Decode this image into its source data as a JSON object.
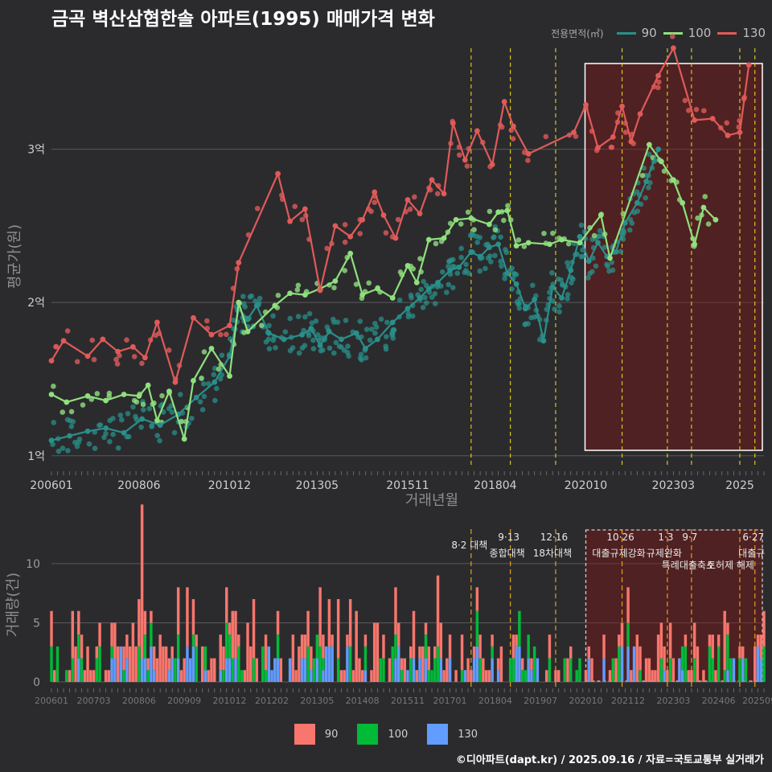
{
  "title": "금곡 벽산삼협한솔 아파트(1995) 매매가격 변화",
  "footer": "©디아파트(dapt.kr) / 2025.09.16 / 자료=국토교통부 실거래가",
  "colors": {
    "s90": "#f8766d",
    "s100": "#00ba38",
    "s130": "#619cff",
    "l90": "#2a8f8a",
    "l100": "#8fe07e",
    "l130": "#e05a5a"
  },
  "chart_data": [
    {
      "type": "line",
      "ylabel": "평균가(원)",
      "xlabel": "거래년월",
      "legend_title": "전용면적(㎡)",
      "legend_position": "top-right",
      "x_ticks": [
        "200601",
        "200806",
        "201012",
        "201305",
        "201511",
        "201804",
        "202010",
        "202303",
        "2025"
      ],
      "y_ticks": [
        "1억",
        "2억",
        "3억"
      ],
      "y_tick_values": [
        10000,
        20000,
        30000
      ],
      "ylim": [
        9200,
        36800
      ],
      "xlim": [
        "2006-01",
        "2025-09"
      ],
      "policy_dates": [
        "2017-08",
        "2018-09",
        "2019-12",
        "2021-10",
        "2023-01",
        "2023-09",
        "2025-01",
        "2025-06"
      ],
      "highlight_window": [
        "2020-10",
        "2025-09"
      ],
      "series": [
        {
          "name": "90",
          "points": [
            [
              "2006-01",
              11000
            ],
            [
              "2006-07",
              11300
            ],
            [
              "2007-01",
              11600
            ],
            [
              "2007-07",
              11800
            ],
            [
              "2008-01",
              11500
            ],
            [
              "2008-07",
              12400
            ],
            [
              "2009-01",
              12000
            ],
            [
              "2009-07",
              12700
            ],
            [
              "2010-01",
              13800
            ],
            [
              "2010-07",
              14800
            ],
            [
              "2010-12",
              16500
            ],
            [
              "2011-03",
              19600
            ],
            [
              "2011-06",
              18900
            ],
            [
              "2011-09",
              19800
            ],
            [
              "2012-01",
              18000
            ],
            [
              "2012-06",
              17600
            ],
            [
              "2012-12",
              17900
            ],
            [
              "2013-03",
              18300
            ],
            [
              "2013-06",
              17200
            ],
            [
              "2013-09",
              18100
            ],
            [
              "2014-01",
              17600
            ],
            [
              "2014-06",
              18000
            ],
            [
              "2014-09",
              17000
            ],
            [
              "2015-01",
              17600
            ],
            [
              "2015-06",
              18700
            ],
            [
              "2015-11",
              19600
            ],
            [
              "2016-03",
              20300
            ],
            [
              "2016-06",
              20900
            ],
            [
              "2016-09",
              21300
            ],
            [
              "2017-01",
              22100
            ],
            [
              "2017-04",
              22300
            ],
            [
              "2017-08",
              23300
            ],
            [
              "2017-11",
              23000
            ],
            [
              "2018-02",
              23600
            ],
            [
              "2018-05",
              23800
            ],
            [
              "2018-08",
              21900
            ],
            [
              "2018-11",
              21200
            ],
            [
              "2019-02",
              19600
            ],
            [
              "2019-05",
              20200
            ],
            [
              "2019-08",
              17500
            ],
            [
              "2019-11",
              21000
            ],
            [
              "2020-02",
              20300
            ],
            [
              "2020-05",
              22100
            ],
            [
              "2020-08",
              24300
            ],
            [
              "2020-11",
              22700
            ],
            [
              "2021-02",
              23900
            ],
            [
              "2021-05",
              23000
            ],
            [
              "2021-08",
              23300
            ],
            [
              "2021-11",
              25200
            ],
            [
              "2022-03",
              26500
            ],
            [
              "2022-06",
              27900
            ],
            [
              "2022-10",
              30000
            ]
          ]
        },
        {
          "name": "100",
          "points": [
            [
              "2006-01",
              14000
            ],
            [
              "2006-06",
              13500
            ],
            [
              "2007-01",
              13900
            ],
            [
              "2007-07",
              13600
            ],
            [
              "2008-01",
              14000
            ],
            [
              "2008-06",
              13900
            ],
            [
              "2008-09",
              14600
            ],
            [
              "2008-12",
              12300
            ],
            [
              "2009-04",
              14200
            ],
            [
              "2009-09",
              11100
            ],
            [
              "2009-12",
              14900
            ],
            [
              "2010-06",
              17000
            ],
            [
              "2010-12",
              15200
            ],
            [
              "2011-03",
              20000
            ],
            [
              "2011-06",
              18100
            ],
            [
              "2012-03",
              19800
            ],
            [
              "2012-08",
              20600
            ],
            [
              "2013-01",
              20500
            ],
            [
              "2013-06",
              20900
            ],
            [
              "2013-11",
              21400
            ],
            [
              "2014-04",
              23200
            ],
            [
              "2014-08",
              20500
            ],
            [
              "2015-01",
              20900
            ],
            [
              "2015-06",
              20300
            ],
            [
              "2015-11",
              22400
            ],
            [
              "2016-02",
              21300
            ],
            [
              "2016-06",
              24100
            ],
            [
              "2016-11",
              24200
            ],
            [
              "2017-03",
              25400
            ],
            [
              "2017-08",
              25500
            ],
            [
              "2018-02",
              25100
            ],
            [
              "2018-05",
              25900
            ],
            [
              "2018-08",
              26000
            ],
            [
              "2018-11",
              23700
            ],
            [
              "2019-03",
              23900
            ],
            [
              "2019-10",
              23800
            ],
            [
              "2020-02",
              24100
            ],
            [
              "2020-08",
              23900
            ],
            [
              "2021-03",
              25700
            ],
            [
              "2021-06",
              22900
            ],
            [
              "2022-07",
              30300
            ],
            [
              "2022-11",
              29200
            ],
            [
              "2023-03",
              28000
            ],
            [
              "2023-06",
              26500
            ],
            [
              "2023-10",
              23800
            ],
            [
              "2024-01",
              26200
            ],
            [
              "2024-05",
              25400
            ]
          ]
        },
        {
          "name": "130",
          "points": [
            [
              "2006-01",
              16200
            ],
            [
              "2006-05",
              17500
            ],
            [
              "2007-01",
              16500
            ],
            [
              "2007-06",
              17600
            ],
            [
              "2007-11",
              16800
            ],
            [
              "2008-04",
              17100
            ],
            [
              "2008-08",
              16400
            ],
            [
              "2008-12",
              18700
            ],
            [
              "2009-06",
              14800
            ],
            [
              "2009-12",
              19000
            ],
            [
              "2010-06",
              17900
            ],
            [
              "2010-12",
              18500
            ],
            [
              "2011-03",
              22600
            ],
            [
              "2012-04",
              28400
            ],
            [
              "2012-08",
              25300
            ],
            [
              "2013-01",
              26100
            ],
            [
              "2013-06",
              20800
            ],
            [
              "2013-11",
              25000
            ],
            [
              "2014-04",
              24300
            ],
            [
              "2014-08",
              25400
            ],
            [
              "2014-12",
              27200
            ],
            [
              "2015-03",
              25700
            ],
            [
              "2015-07",
              24200
            ],
            [
              "2015-11",
              26700
            ],
            [
              "2016-03",
              25800
            ],
            [
              "2016-07",
              28000
            ],
            [
              "2016-11",
              27100
            ],
            [
              "2017-02",
              31700
            ],
            [
              "2017-06",
              29300
            ],
            [
              "2017-10",
              31200
            ],
            [
              "2018-03",
              29000
            ],
            [
              "2018-07",
              33100
            ],
            [
              "2018-10",
              31500
            ],
            [
              "2019-03",
              29700
            ],
            [
              "2020-06",
              31100
            ],
            [
              "2020-10",
              32900
            ],
            [
              "2021-02",
              30100
            ],
            [
              "2021-07",
              30800
            ],
            [
              "2021-10",
              32800
            ],
            [
              "2022-01",
              30500
            ],
            [
              "2022-04",
              32300
            ],
            [
              "2022-10",
              34800
            ],
            [
              "2023-03",
              36600
            ],
            [
              "2023-10",
              31900
            ],
            [
              "2024-04",
              32000
            ],
            [
              "2024-09",
              30900
            ],
            [
              "2025-01",
              31100
            ],
            [
              "2025-04",
              35500
            ]
          ]
        }
      ]
    },
    {
      "type": "bar",
      "ylabel": "거래량(건)",
      "x_ticks": [
        "200601",
        "200703",
        "200806",
        "200909",
        "201012",
        "201202",
        "201305",
        "201408",
        "201511",
        "201701",
        "201804",
        "201907",
        "202010",
        "202112",
        "202303",
        "202406",
        "202509"
      ],
      "y_ticks": [
        "0",
        "5",
        "10"
      ],
      "y_tick_values": [
        0,
        5,
        10
      ],
      "ylim": [
        0,
        13.8
      ],
      "stacked": true,
      "highlight_window": [
        "2020-10",
        "2025-09"
      ],
      "annotations": [
        {
          "date": "2017-08",
          "lines": [
            "8·2 대책"
          ]
        },
        {
          "date": "2018-09",
          "lines": [
            "9·13",
            "종합대책"
          ]
        },
        {
          "date": "2019-12",
          "lines": [
            "12·16",
            "18차대책"
          ]
        },
        {
          "date": "2021-10",
          "lines": [
            "10·26",
            "대출규제강화"
          ]
        },
        {
          "date": "2023-01",
          "lines": [
            "1·3",
            "규제완화"
          ]
        },
        {
          "date": "2023-09",
          "lines": [
            "9·7",
            "특례대출축소"
          ]
        },
        {
          "date": "2024-11",
          "lines": [
            "",
            "토허제 해제"
          ]
        },
        {
          "date": "2025-06",
          "lines": [
            "6·27",
            "대출규"
          ]
        }
      ],
      "legend_entries": [
        "90",
        "100",
        "130"
      ]
    }
  ]
}
